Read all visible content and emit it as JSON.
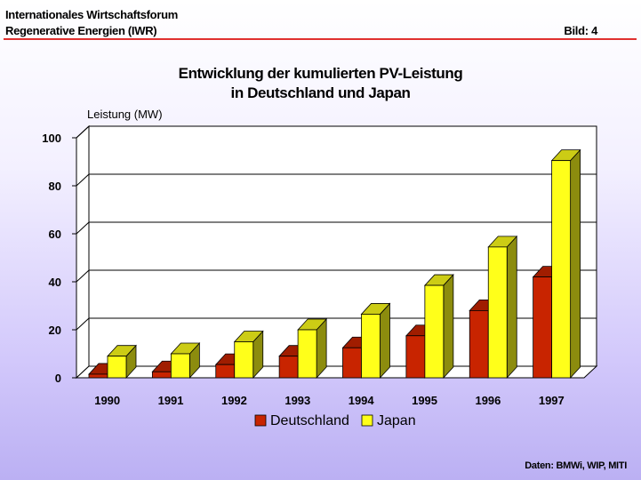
{
  "header": {
    "line1": "Internationales Wirtschaftsforum",
    "line2": "Regenerative Energien (IWR)",
    "slide_label": "Bild: 4"
  },
  "footer": "Daten: BMWi, WIP, MITI",
  "colors": {
    "accent_rule": "#e03030",
    "deutschland": "#c82400",
    "japan": "#ffff1a"
  },
  "chart_data": {
    "type": "bar",
    "title": "Entwicklung der kumulierten PV-Leistung",
    "subtitle": "in Deutschland und Japan",
    "ylabel": "Leistung (MW)",
    "xlabel": "",
    "ylim": [
      0,
      100
    ],
    "yticks": [
      0,
      20,
      40,
      60,
      80,
      100
    ],
    "grid": true,
    "legend": "bottom",
    "categories": [
      "1990",
      "1991",
      "1992",
      "1993",
      "1994",
      "1995",
      "1996",
      "1997"
    ],
    "series": [
      {
        "name": "Deutschland",
        "values": [
          1.5,
          2.5,
          5.5,
          9,
          12.5,
          17.5,
          28,
          42
        ]
      },
      {
        "name": "Japan",
        "values": [
          9,
          10,
          15,
          20,
          26.5,
          38.5,
          54.5,
          90.5
        ]
      }
    ]
  }
}
